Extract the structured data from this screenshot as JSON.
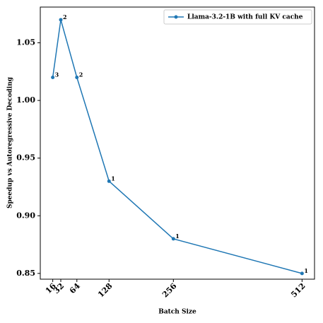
{
  "chart_data": {
    "type": "line",
    "xlabel": "Batch Size",
    "ylabel": "Speedup vs Autoregressive Decoding",
    "x": [
      16,
      32,
      64,
      128,
      256,
      512
    ],
    "series": [
      {
        "name": "Llama-3.2-1B with full KV cache",
        "color": "#1f77b4",
        "values": [
          1.02,
          1.07,
          1.02,
          0.93,
          0.88,
          0.85
        ]
      }
    ],
    "point_labels": [
      "3",
      "2",
      "2",
      "1",
      "1",
      "1"
    ],
    "xlim": [
      -8.8,
      536.8
    ],
    "xticks": [
      16,
      32,
      64,
      128,
      256,
      512
    ],
    "ylim": [
      0.845,
      1.081
    ],
    "yticks": [
      0.85,
      {
        "value": 0.9,
        "label": "0.90"
      },
      0.95,
      {
        "value": 1.0,
        "label": "1.00"
      },
      1.05
    ],
    "legend": "upper right",
    "grid": false
  }
}
